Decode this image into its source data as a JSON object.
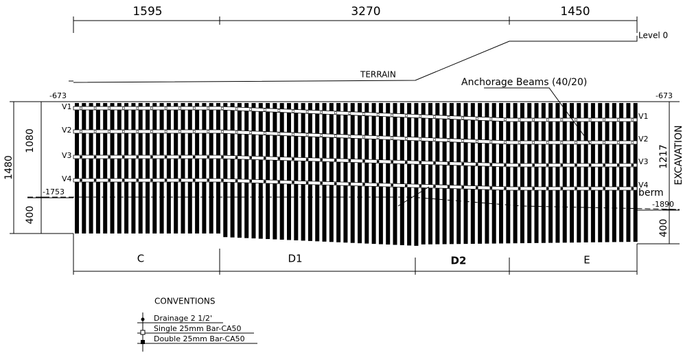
{
  "dimensions": {
    "top": [
      "1595",
      "3270",
      "1450"
    ],
    "left_total": "1480",
    "left_upper": "1080",
    "left_lower": "400",
    "right_upper": "1217",
    "right_lower": "400"
  },
  "labels": {
    "level": "Level 0",
    "terrain": "TERRAIN",
    "anchorage": "Anchorage Beams (40/20)",
    "excavation": "EXCAVATION",
    "berm": "berm"
  },
  "elevations": {
    "left_top": "-673",
    "left_bottom": "-1753",
    "right_top": "-673",
    "right_bottom": "-1890"
  },
  "beams": {
    "left": [
      "V1",
      "V2",
      "V3",
      "V4"
    ],
    "right": [
      "V1",
      "V2",
      "V3",
      "V4"
    ]
  },
  "sections": [
    "C",
    "D1",
    "D2",
    "E"
  ],
  "conventions": {
    "title": "CONVENTIONS",
    "items": [
      "Drainage 2 1/2'",
      "Single 25mm Bar-CA50",
      "Double 25mm Bar-CA50"
    ]
  }
}
